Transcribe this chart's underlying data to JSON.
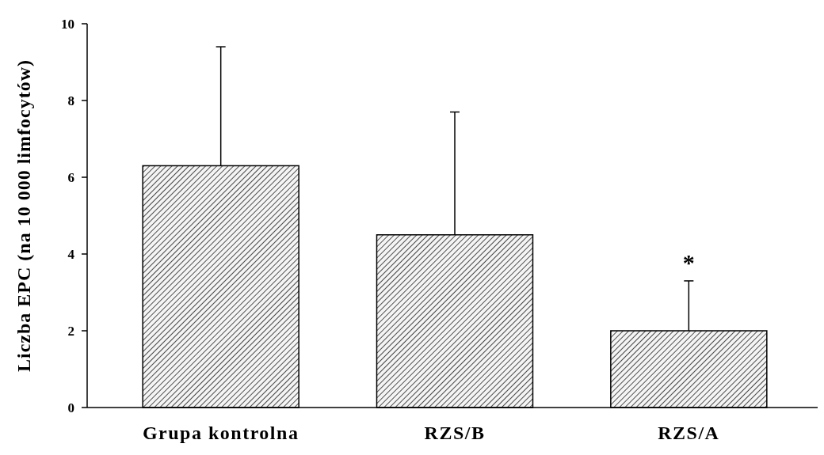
{
  "chart_data": {
    "type": "bar",
    "ylabel": "Liczba EPC (na 10 000 limfocytów)",
    "categories": [
      "Grupa kontrolna",
      "RZS/B",
      "RZS/A"
    ],
    "values": [
      6.3,
      4.5,
      2.0
    ],
    "errors": [
      3.1,
      3.2,
      1.3
    ],
    "color": "#000000",
    "ylim": [
      0,
      10
    ],
    "yticks": [
      0,
      2,
      4,
      6,
      8,
      10
    ],
    "annotations": [
      "*"
    ],
    "grid": false
  }
}
